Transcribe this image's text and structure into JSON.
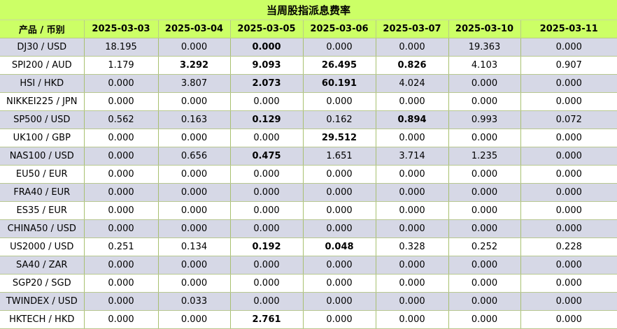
{
  "title": "当周股指派息费率",
  "header": {
    "col0": "产品 / 币别",
    "dates": [
      "2025-03-03",
      "2025-03-04",
      "2025-03-05",
      "2025-03-06",
      "2025-03-07",
      "2025-03-10",
      "2025-03-11"
    ]
  },
  "rows": [
    {
      "product": "DJ30 / USD",
      "values": [
        "18.195",
        "0.000",
        "0.000",
        "0.000",
        "0.000",
        "19.363",
        "0.000"
      ],
      "bold": [
        false,
        false,
        true,
        false,
        false,
        false,
        false
      ]
    },
    {
      "product": "SPI200 / AUD",
      "values": [
        "1.179",
        "3.292",
        "9.093",
        "26.495",
        "0.826",
        "4.103",
        "0.907"
      ],
      "bold": [
        false,
        true,
        true,
        true,
        true,
        false,
        false
      ]
    },
    {
      "product": "HSI / HKD",
      "values": [
        "0.000",
        "3.807",
        "2.073",
        "60.191",
        "4.024",
        "0.000",
        "0.000"
      ],
      "bold": [
        false,
        false,
        true,
        true,
        false,
        false,
        false
      ]
    },
    {
      "product": "NIKKEI225 / JPN",
      "values": [
        "0.000",
        "0.000",
        "0.000",
        "0.000",
        "0.000",
        "0.000",
        "0.000"
      ],
      "bold": [
        false,
        false,
        false,
        false,
        false,
        false,
        false
      ]
    },
    {
      "product": "SP500 / USD",
      "values": [
        "0.562",
        "0.163",
        "0.129",
        "0.162",
        "0.894",
        "0.993",
        "0.072"
      ],
      "bold": [
        false,
        false,
        true,
        false,
        true,
        false,
        false
      ]
    },
    {
      "product": "UK100 / GBP",
      "values": [
        "0.000",
        "0.000",
        "0.000",
        "29.512",
        "0.000",
        "0.000",
        "0.000"
      ],
      "bold": [
        false,
        false,
        false,
        true,
        false,
        false,
        false
      ]
    },
    {
      "product": "NAS100 / USD",
      "values": [
        "0.000",
        "0.656",
        "0.475",
        "1.651",
        "3.714",
        "1.235",
        "0.000"
      ],
      "bold": [
        false,
        false,
        true,
        false,
        false,
        false,
        false
      ]
    },
    {
      "product": "EU50 / EUR",
      "values": [
        "0.000",
        "0.000",
        "0.000",
        "0.000",
        "0.000",
        "0.000",
        "0.000"
      ],
      "bold": [
        false,
        false,
        false,
        false,
        false,
        false,
        false
      ]
    },
    {
      "product": "FRA40 / EUR",
      "values": [
        "0.000",
        "0.000",
        "0.000",
        "0.000",
        "0.000",
        "0.000",
        "0.000"
      ],
      "bold": [
        false,
        false,
        false,
        false,
        false,
        false,
        false
      ]
    },
    {
      "product": "ES35 / EUR",
      "values": [
        "0.000",
        "0.000",
        "0.000",
        "0.000",
        "0.000",
        "0.000",
        "0.000"
      ],
      "bold": [
        false,
        false,
        false,
        false,
        false,
        false,
        false
      ]
    },
    {
      "product": "CHINA50 / USD",
      "values": [
        "0.000",
        "0.000",
        "0.000",
        "0.000",
        "0.000",
        "0.000",
        "0.000"
      ],
      "bold": [
        false,
        false,
        false,
        false,
        false,
        false,
        false
      ]
    },
    {
      "product": "US2000 / USD",
      "values": [
        "0.251",
        "0.134",
        "0.192",
        "0.048",
        "0.328",
        "0.252",
        "0.228"
      ],
      "bold": [
        false,
        false,
        true,
        true,
        false,
        false,
        false
      ]
    },
    {
      "product": "SA40 / ZAR",
      "values": [
        "0.000",
        "0.000",
        "0.000",
        "0.000",
        "0.000",
        "0.000",
        "0.000"
      ],
      "bold": [
        false,
        false,
        false,
        false,
        false,
        false,
        false
      ]
    },
    {
      "product": "SGP20 / SGD",
      "values": [
        "0.000",
        "0.000",
        "0.000",
        "0.000",
        "0.000",
        "0.000",
        "0.000"
      ],
      "bold": [
        false,
        false,
        false,
        false,
        false,
        false,
        false
      ]
    },
    {
      "product": "TWINDEX / USD",
      "values": [
        "0.000",
        "0.033",
        "0.000",
        "0.000",
        "0.000",
        "0.000",
        "0.000"
      ],
      "bold": [
        false,
        false,
        false,
        false,
        false,
        false,
        false
      ]
    },
    {
      "product": "HKTECH / HKD",
      "values": [
        "0.000",
        "0.000",
        "2.761",
        "0.000",
        "0.000",
        "0.000",
        "0.000"
      ],
      "bold": [
        false,
        false,
        true,
        false,
        false,
        false,
        false
      ]
    }
  ],
  "colors": {
    "header_bg": "#ccff66",
    "row_odd_bg": "#d6d8e6",
    "row_even_bg": "#ffffff"
  }
}
